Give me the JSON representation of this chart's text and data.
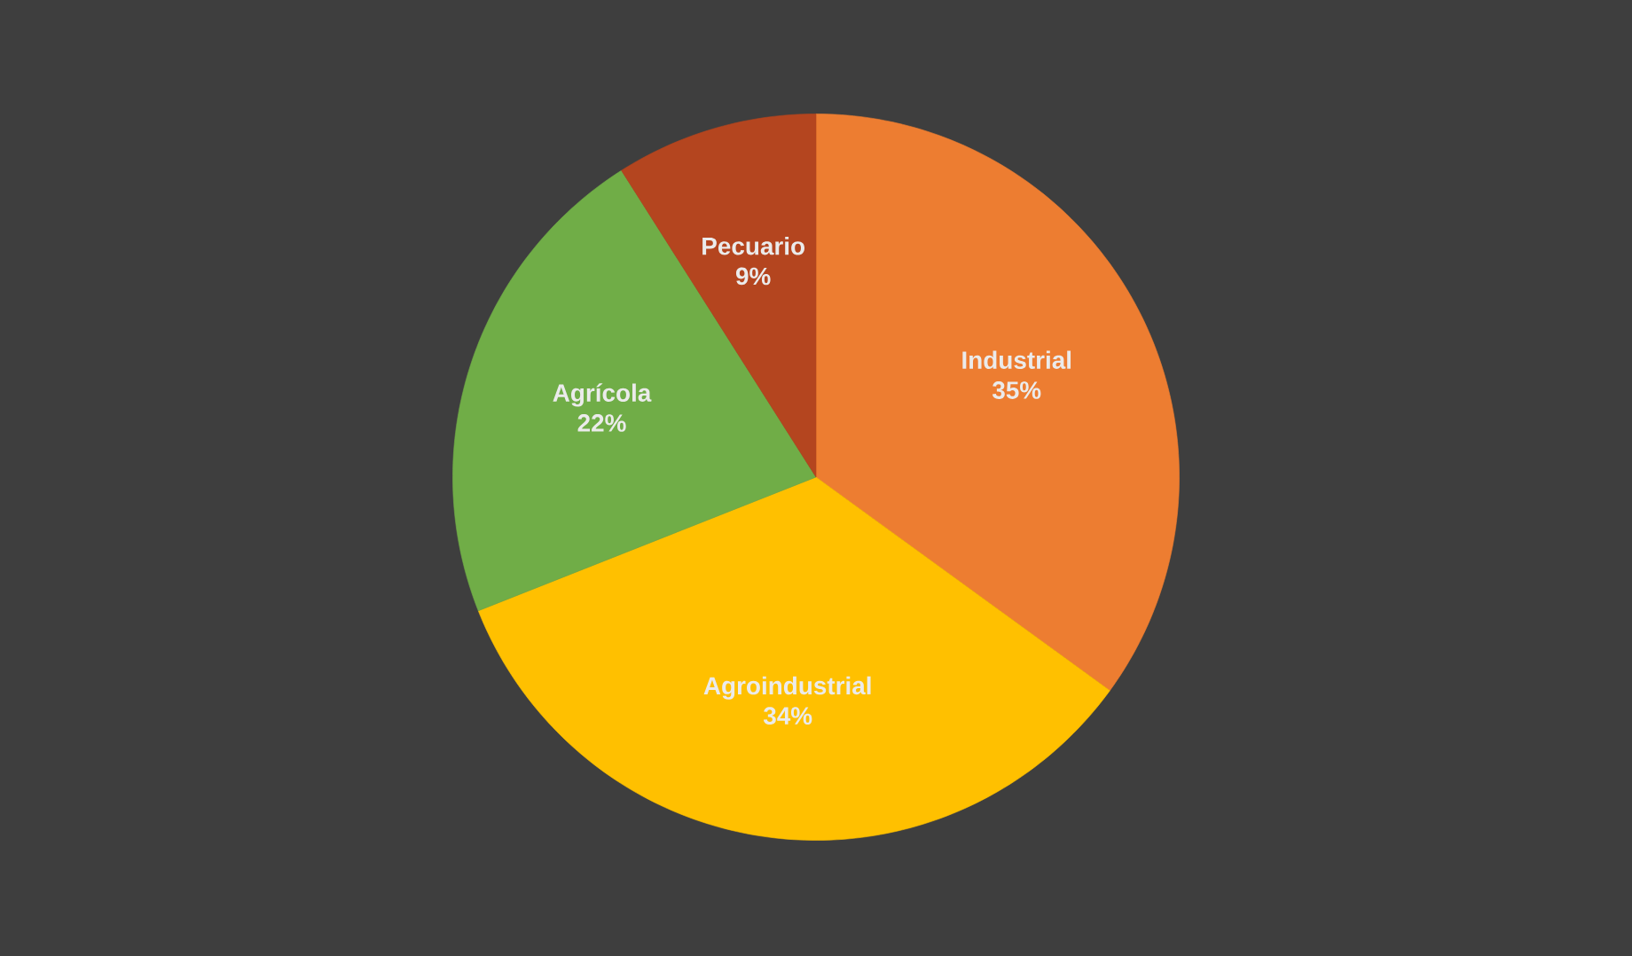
{
  "chart_data": {
    "type": "pie",
    "categories": [
      "Industrial",
      "Agroindustrial",
      "Agrícola",
      "Pecuario"
    ],
    "values": [
      35,
      34,
      22,
      9
    ],
    "colors": [
      "#ed7d31",
      "#ffc000",
      "#70ad47",
      "#b4451f"
    ],
    "value_labels": [
      "35%",
      "34%",
      "22%",
      "9%"
    ]
  }
}
